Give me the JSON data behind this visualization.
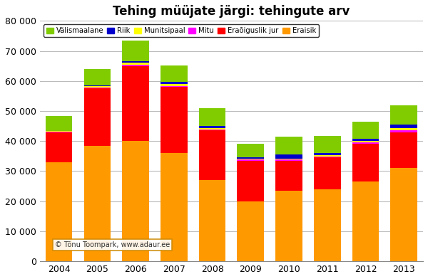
{
  "title": "Tehing müüjate järgi: tehingute arv",
  "years": [
    2004,
    2005,
    2006,
    2007,
    2008,
    2009,
    2010,
    2011,
    2012,
    2013
  ],
  "categories": [
    "Välismaalane",
    "Riik",
    "Munitsipaal",
    "Mitu",
    "Eraõiguslik jur",
    "Eraisik"
  ],
  "colors": [
    "#80cc00",
    "#0000cc",
    "#ffff00",
    "#ff00ff",
    "#ff0000",
    "#ff9900"
  ],
  "data": {
    "Eraisik": [
      33000,
      38500,
      40000,
      36000,
      27000,
      20000,
      23500,
      24000,
      26500,
      31000
    ],
    "Eraõiguslik jur": [
      10000,
      19000,
      25000,
      22000,
      16500,
      13500,
      10000,
      10500,
      12500,
      12000
    ],
    "Mitu": [
      150,
      300,
      400,
      350,
      350,
      300,
      300,
      350,
      500,
      600
    ],
    "Munitsipaal": [
      150,
      500,
      600,
      600,
      450,
      350,
      450,
      450,
      550,
      600
    ],
    "Riik": [
      150,
      250,
      500,
      650,
      650,
      550,
      1200,
      800,
      800,
      1200
    ],
    "Välismaalane": [
      5000,
      5500,
      7000,
      5500,
      6000,
      4500,
      6000,
      5500,
      5700,
      6600
    ]
  },
  "ylim": [
    0,
    80000
  ],
  "yticks": [
    0,
    10000,
    20000,
    30000,
    40000,
    50000,
    60000,
    70000,
    80000
  ],
  "ytick_labels": [
    "0",
    "10 000",
    "20 000",
    "30 000",
    "40 000",
    "50 000",
    "60 000",
    "70 000",
    "80 000"
  ],
  "watermark": "© Tõnu Toompark, www.adaur.ee",
  "background_color": "#ffffff",
  "plot_background": "#ffffff",
  "grid_color": "#bbbbbb",
  "bar_width": 0.7
}
